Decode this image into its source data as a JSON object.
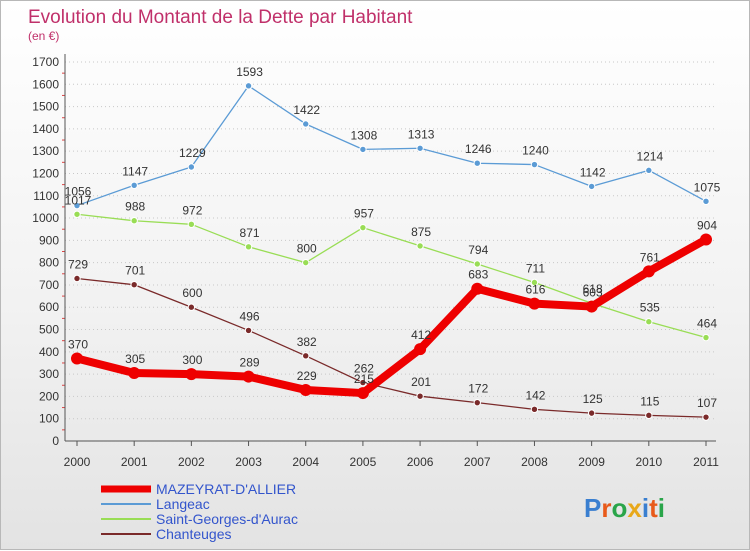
{
  "header": {
    "title": "Evolution du Montant de la Dette par Habitant",
    "subtitle": "(en €)"
  },
  "logo": {
    "text": "Proxiti"
  },
  "chart_data": {
    "type": "line",
    "title": "Evolution du Montant de la Dette par Habitant",
    "subtitle": "(en €)",
    "xlabel": "",
    "ylabel": "",
    "x": [
      "2000",
      "2001",
      "2002",
      "2003",
      "2004",
      "2005",
      "2006",
      "2007",
      "2008",
      "2009",
      "2010",
      "2011"
    ],
    "ylim": [
      0,
      1700
    ],
    "yticks": [
      0,
      100,
      200,
      300,
      400,
      500,
      600,
      700,
      800,
      900,
      1000,
      1100,
      1200,
      1300,
      1400,
      1500,
      1600,
      1700
    ],
    "grid": "horizontal dotted",
    "legend": "bottom-left",
    "series": [
      {
        "name": "MAZEYRAT-D'ALLIER",
        "color": "#ee0000",
        "values": [
          370,
          305,
          300,
          289,
          229,
          215,
          412,
          683,
          616,
          603,
          761,
          904
        ]
      },
      {
        "name": "Langeac",
        "color": "#5b9bd5",
        "values": [
          1056,
          1147,
          1229,
          1593,
          1422,
          1308,
          1313,
          1246,
          1240,
          1142,
          1214,
          1075
        ]
      },
      {
        "name": "Saint-Georges-d'Aurac",
        "color": "#99dd55",
        "values": [
          1017,
          988,
          972,
          871,
          800,
          957,
          875,
          794,
          711,
          618,
          535,
          464
        ]
      },
      {
        "name": "Chanteuges",
        "color": "#7a2a2a",
        "values": [
          729,
          701,
          600,
          496,
          382,
          262,
          201,
          172,
          142,
          125,
          115,
          107
        ]
      }
    ]
  }
}
